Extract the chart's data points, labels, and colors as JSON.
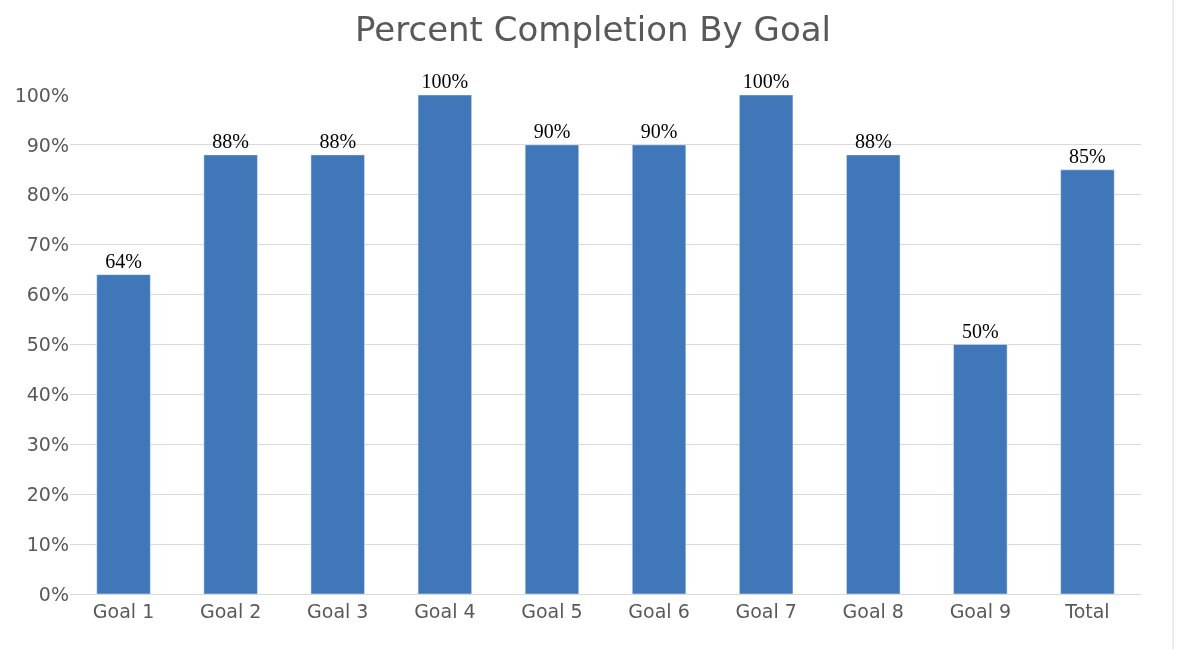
{
  "chart_data": {
    "type": "bar",
    "title": "Percent Completion By Goal",
    "categories": [
      "Goal 1",
      "Goal 2",
      "Goal 3",
      "Goal 4",
      "Goal 5",
      "Goal 6",
      "Goal 7",
      "Goal 8",
      "Goal 9",
      "Total"
    ],
    "values": [
      64,
      88,
      88,
      100,
      90,
      90,
      100,
      88,
      50,
      85
    ],
    "value_labels": [
      "64%",
      "88%",
      "88%",
      "100%",
      "90%",
      "90%",
      "100%",
      "88%",
      "50%",
      "85%"
    ],
    "color": "#3f77b8",
    "ylim": [
      0,
      100
    ],
    "yticks": [
      {
        "value": 0,
        "label": "0%"
      },
      {
        "value": 10,
        "label": "10%"
      },
      {
        "value": 20,
        "label": "20%"
      },
      {
        "value": 30,
        "label": "30%"
      },
      {
        "value": 40,
        "label": "40%"
      },
      {
        "value": 50,
        "label": "50%"
      },
      {
        "value": 60,
        "label": "60%"
      },
      {
        "value": 70,
        "label": "70%"
      },
      {
        "value": 80,
        "label": "80%"
      },
      {
        "value": 90,
        "label": "90%"
      },
      {
        "value": 100,
        "label": "100%"
      }
    ],
    "grid": "y",
    "legend": false
  }
}
